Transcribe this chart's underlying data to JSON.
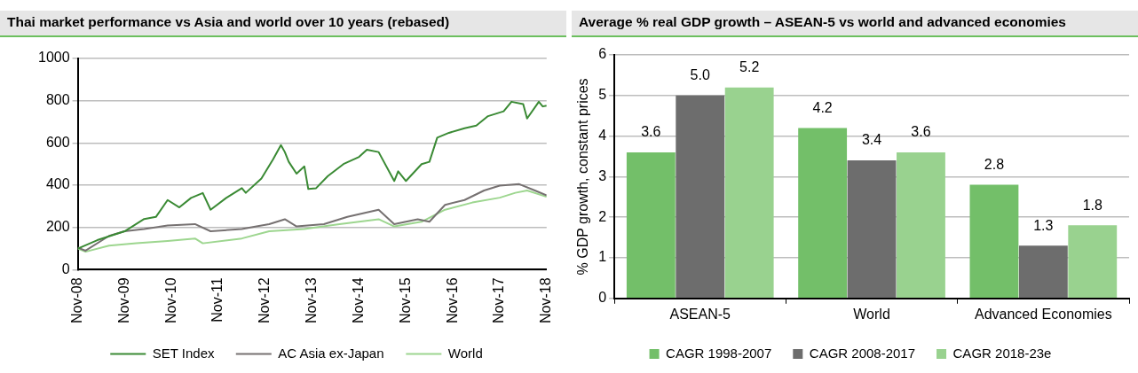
{
  "chart_data": [
    {
      "type": "line",
      "title": "Thai market performance vs Asia and world over 10 years (rebased)",
      "xlim": [
        "2008-11",
        "2018-11"
      ],
      "xticks": [
        {
          "value": "2008-11",
          "label": "Nov-08"
        },
        {
          "value": "2009-11",
          "label": "Nov-09"
        },
        {
          "value": "2010-11",
          "label": "Nov-10"
        },
        {
          "value": "2011-11",
          "label": "Nov-11"
        },
        {
          "value": "2012-11",
          "label": "Nov-12"
        },
        {
          "value": "2013-11",
          "label": "Nov-13"
        },
        {
          "value": "2014-11",
          "label": "Nov-14"
        },
        {
          "value": "2015-11",
          "label": "Nov-15"
        },
        {
          "value": "2016-11",
          "label": "Nov-16"
        },
        {
          "value": "2017-11",
          "label": "Nov-17"
        },
        {
          "value": "2018-11",
          "label": "Nov-18"
        }
      ],
      "ylim": [
        0,
        1000
      ],
      "yticks": [
        0,
        200,
        400,
        600,
        800,
        1000
      ],
      "grid": "y",
      "legend": "bottom",
      "marker": "none",
      "line_style": "solid",
      "series": [
        {
          "name": "SET Index",
          "color": "#3a8a34",
          "x": [
            "2008-11",
            "2009-04",
            "2009-11",
            "2010-04",
            "2010-07",
            "2010-10",
            "2011-01",
            "2011-04",
            "2011-07",
            "2011-09",
            "2012-01",
            "2012-05",
            "2012-06",
            "2012-10",
            "2013-01",
            "2013-03",
            "2013-04",
            "2013-05",
            "2013-07",
            "2013-09",
            "2013-10",
            "2013-12",
            "2014-03",
            "2014-07",
            "2014-11",
            "2015-01",
            "2015-04",
            "2015-08",
            "2015-09",
            "2015-11",
            "2016-03",
            "2016-05",
            "2016-07",
            "2016-10",
            "2017-02",
            "2017-05",
            "2017-08",
            "2017-12",
            "2018-02",
            "2018-05",
            "2018-06",
            "2018-09",
            "2018-10",
            "2018-11"
          ],
          "values": [
            100,
            140,
            182,
            240,
            250,
            330,
            295,
            340,
            363,
            284,
            340,
            386,
            364,
            432,
            523,
            590,
            557,
            511,
            455,
            489,
            382,
            386,
            443,
            500,
            534,
            568,
            557,
            420,
            466,
            420,
            500,
            511,
            625,
            648,
            670,
            682,
            727,
            750,
            795,
            784,
            716,
            795,
            773,
            777
          ]
        },
        {
          "name": "AC Asia ex-Japan",
          "color": "#767171",
          "x": [
            "2008-11",
            "2009-01",
            "2009-07",
            "2009-11",
            "2010-04",
            "2010-10",
            "2011-05",
            "2011-09",
            "2012-05",
            "2012-12",
            "2013-04",
            "2013-07",
            "2014-02",
            "2014-08",
            "2015-04",
            "2015-08",
            "2016-02",
            "2016-05",
            "2016-09",
            "2017-02",
            "2017-07",
            "2017-11",
            "2018-04",
            "2018-08",
            "2018-11"
          ],
          "values": [
            105,
            90,
            160,
            182,
            193,
            209,
            216,
            182,
            193,
            216,
            239,
            205,
            216,
            250,
            284,
            216,
            239,
            227,
            307,
            330,
            375,
            398,
            405,
            375,
            352
          ]
        },
        {
          "name": "World",
          "color": "#9dd68f",
          "x": [
            "2008-11",
            "2009-01",
            "2009-07",
            "2010-02",
            "2010-10",
            "2011-05",
            "2011-07",
            "2012-05",
            "2012-12",
            "2013-09",
            "2014-06",
            "2015-04",
            "2015-08",
            "2016-03",
            "2016-09",
            "2017-04",
            "2017-11",
            "2018-03",
            "2018-06",
            "2018-11"
          ],
          "values": [
            100,
            85,
            114,
            125,
            136,
            148,
            125,
            148,
            182,
            193,
            216,
            239,
            205,
            227,
            284,
            318,
            341,
            364,
            375,
            345
          ]
        }
      ]
    },
    {
      "type": "bar",
      "title": "Average % real GDP growth – ASEAN-5 vs world and advanced economies",
      "ylabel": "% GDP growth, constant prices",
      "categories": [
        "ASEAN-5",
        "World",
        "Advanced Economies"
      ],
      "ylim": [
        0,
        6
      ],
      "yticks": [
        0,
        1,
        2,
        3,
        4,
        5,
        6
      ],
      "grid": "y",
      "legend": "bottom",
      "series": [
        {
          "name": "CAGR 1998-2007",
          "color": "#73bf69",
          "values": [
            3.6,
            4.2,
            2.8
          ],
          "value_labels": [
            "3.6",
            "4.2",
            "2.8"
          ]
        },
        {
          "name": "CAGR 2008-2017",
          "color": "#6d6d6d",
          "values": [
            5.0,
            3.4,
            1.3
          ],
          "value_labels": [
            "5.0",
            "3.4",
            "1.3"
          ]
        },
        {
          "name": "CAGR 2018-23e",
          "color": "#99d28f",
          "values": [
            5.2,
            3.6,
            1.8
          ],
          "value_labels": [
            "5.2",
            "3.6",
            "1.8"
          ]
        }
      ]
    }
  ]
}
